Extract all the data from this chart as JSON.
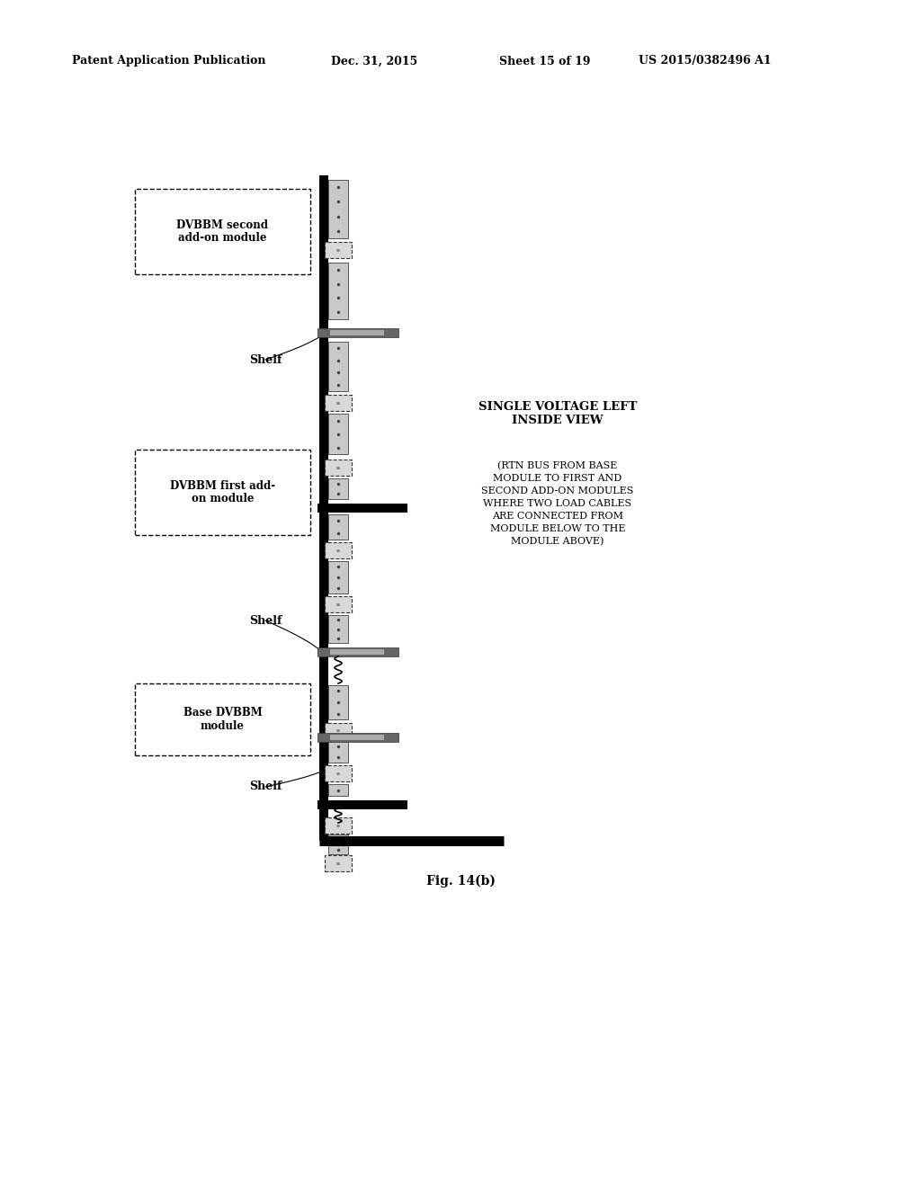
{
  "bg_color": "#ffffff",
  "header_text": "Patent Application Publication",
  "header_date": "Dec. 31, 2015",
  "header_sheet": "Sheet 15 of 19",
  "header_patent": "US 2015/0382496 A1",
  "fig_label": "Fig. 14(b)",
  "title_line1": "SINGLE VOLTAGE LEFT",
  "title_line2": "INSIDE VIEW",
  "subtitle": "(RTN BUS FROM BASE\nMODULE TO FIRST AND\nSECOND ADD-ON MODULES\nWHERE TWO LOAD CABLES\nARE CONNECTED FROM\nMODULE BELOW TO THE\nMODULE ABOVE)",
  "label_module2": "DVBBM second\nadd-on module",
  "label_module1": "DVBBM first add-\non module",
  "label_base": "Base DVBBM\nmodule",
  "label_shelf": "Shelf"
}
